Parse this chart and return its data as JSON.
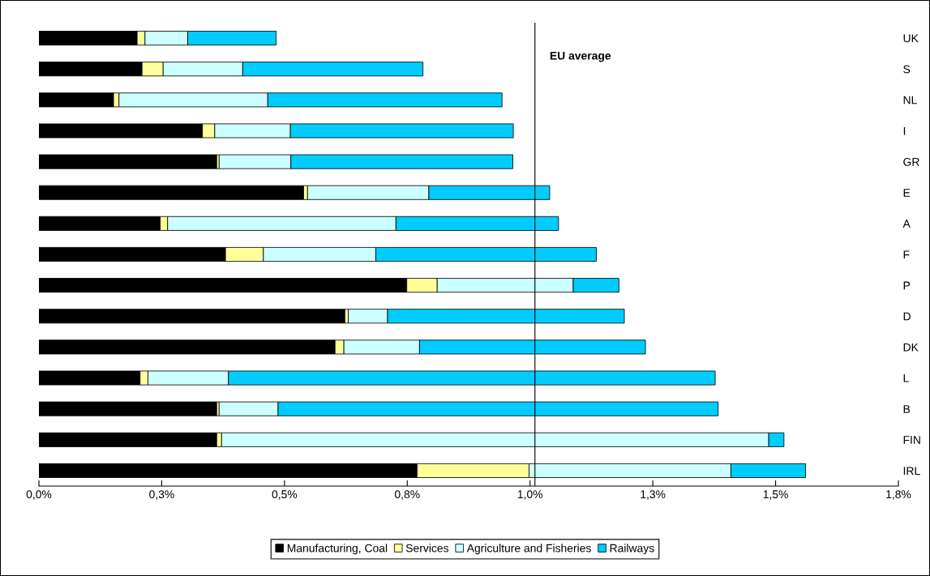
{
  "chart_data": {
    "type": "bar",
    "orientation": "horizontal",
    "stacked": true,
    "categories": [
      "UK",
      "S",
      "NL",
      "I",
      "GR",
      "E",
      "A",
      "F",
      "P",
      "D",
      "DK",
      "L",
      "B",
      "FIN",
      "IRL"
    ],
    "series": [
      {
        "name": "Manufacturing, Coal",
        "color": "#000000",
        "values": [
          0.2,
          0.21,
          0.152,
          0.333,
          0.362,
          0.539,
          0.247,
          0.38,
          0.749,
          0.623,
          0.603,
          0.206,
          0.362,
          0.362,
          0.77
        ]
      },
      {
        "name": "Services",
        "color": "#ffff99",
        "values": [
          0.016,
          0.043,
          0.011,
          0.025,
          0.005,
          0.008,
          0.015,
          0.077,
          0.062,
          0.007,
          0.018,
          0.016,
          0.005,
          0.01,
          0.228
        ]
      },
      {
        "name": "Agriculture and Fisheries",
        "color": "#ccffff",
        "values": [
          0.087,
          0.162,
          0.303,
          0.154,
          0.146,
          0.247,
          0.465,
          0.229,
          0.277,
          0.08,
          0.154,
          0.164,
          0.12,
          1.114,
          0.411
        ]
      },
      {
        "name": "Railways",
        "color": "#00ccff",
        "values": [
          0.18,
          0.367,
          0.477,
          0.454,
          0.452,
          0.246,
          0.331,
          0.449,
          0.093,
          0.482,
          0.46,
          0.991,
          0.896,
          0.031,
          0.152
        ]
      }
    ],
    "xlim": [
      0,
      1.75
    ],
    "xticks": [
      {
        "value": 0,
        "label": "0,0%"
      },
      {
        "value": 0.25,
        "label": "0,3%"
      },
      {
        "value": 0.5,
        "label": "0,5%"
      },
      {
        "value": 0.75,
        "label": "0,8%"
      },
      {
        "value": 1.0,
        "label": "1,0%"
      },
      {
        "value": 1.25,
        "label": "1,3%"
      },
      {
        "value": 1.5,
        "label": "1,5%"
      },
      {
        "value": 1.75,
        "label": "1,8%"
      }
    ],
    "ref_lines": [
      {
        "axis": "x",
        "value": 1.01,
        "label": "EU average",
        "color": "#000000"
      }
    ],
    "grid": false,
    "legend": "bottom"
  }
}
